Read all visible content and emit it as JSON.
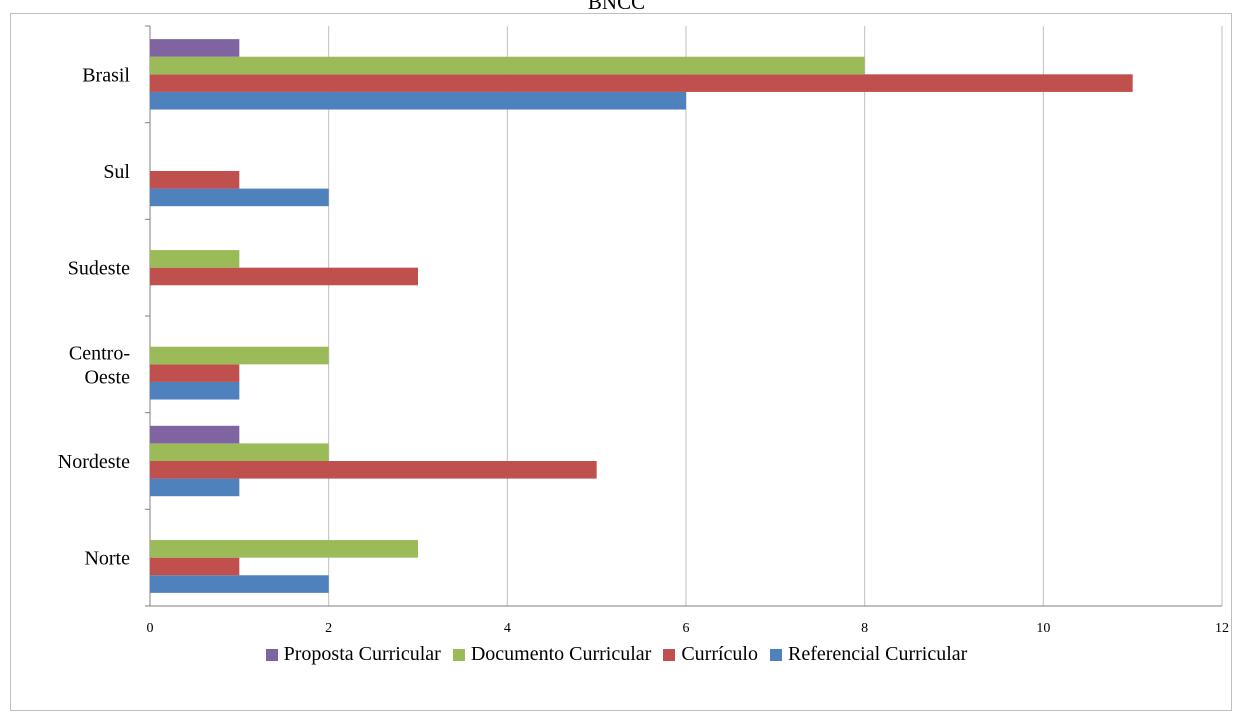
{
  "chart_data": {
    "type": "bar",
    "orientation": "horizontal",
    "title": "BNCC",
    "categories": [
      "Norte",
      "Nordeste",
      "Centro-Oeste",
      "Sudeste",
      "Sul",
      "Brasil"
    ],
    "category_label_lines": {
      "Centro-Oeste": [
        "Centro-",
        "Oeste"
      ]
    },
    "series": [
      {
        "name": "Referencial Curricular",
        "color": "#4f81bd",
        "values": [
          2,
          1,
          1,
          0,
          2,
          6
        ]
      },
      {
        "name": "Currículo",
        "color": "#c0504d",
        "values": [
          1,
          5,
          1,
          3,
          1,
          11
        ]
      },
      {
        "name": "Documento Curricular",
        "color": "#9bbb59",
        "values": [
          3,
          2,
          2,
          1,
          0,
          8
        ]
      },
      {
        "name": "Proposta Curricular",
        "color": "#8064a2",
        "values": [
          0,
          1,
          0,
          0,
          0,
          1
        ]
      }
    ],
    "legend_order": [
      "Proposta Curricular",
      "Documento Curricular",
      "Currículo",
      "Referencial Curricular"
    ],
    "xlim": [
      0,
      12
    ],
    "xticks": [
      0,
      2,
      4,
      6,
      8,
      10,
      12
    ],
    "grid": true,
    "legend_position": "bottom"
  }
}
